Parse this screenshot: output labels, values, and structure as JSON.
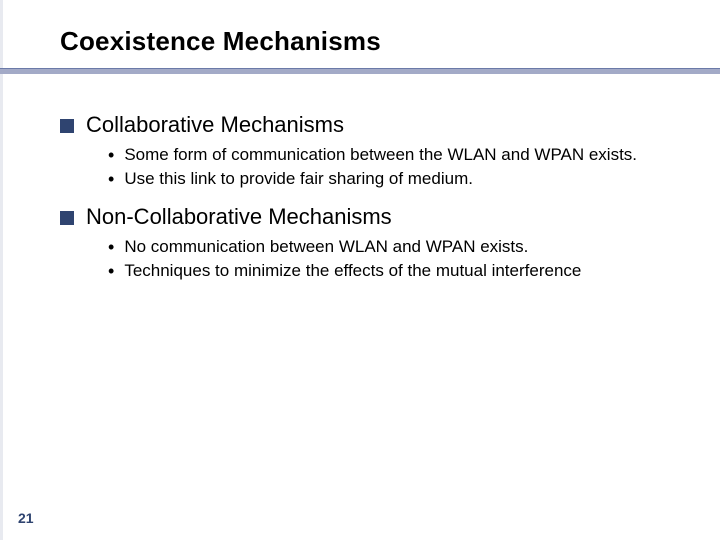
{
  "slide": {
    "title": "Coexistence Mechanisms",
    "page_number": "21",
    "background_color": "#ffffff",
    "title_color": "#000000",
    "title_fontsize": 26,
    "underline_color": "#a3aac7",
    "underline_border": "#6b7aa8",
    "l1_bullet_color": "#2f4470",
    "l1_fontsize": 22,
    "l2_bullet_char": "•",
    "l2_fontsize": 17,
    "text_color": "#000000",
    "pagenum_color": "#2f4470",
    "sections": [
      {
        "heading": "Collaborative Mechanisms",
        "items": [
          "Some form of communication between the WLAN and WPAN exists.",
          "Use this link to provide fair sharing of medium."
        ]
      },
      {
        "heading": "Non-Collaborative Mechanisms",
        "items": [
          "No communication between WLAN and WPAN exists.",
          "Techniques to minimize the effects of the mutual interference"
        ]
      }
    ]
  }
}
